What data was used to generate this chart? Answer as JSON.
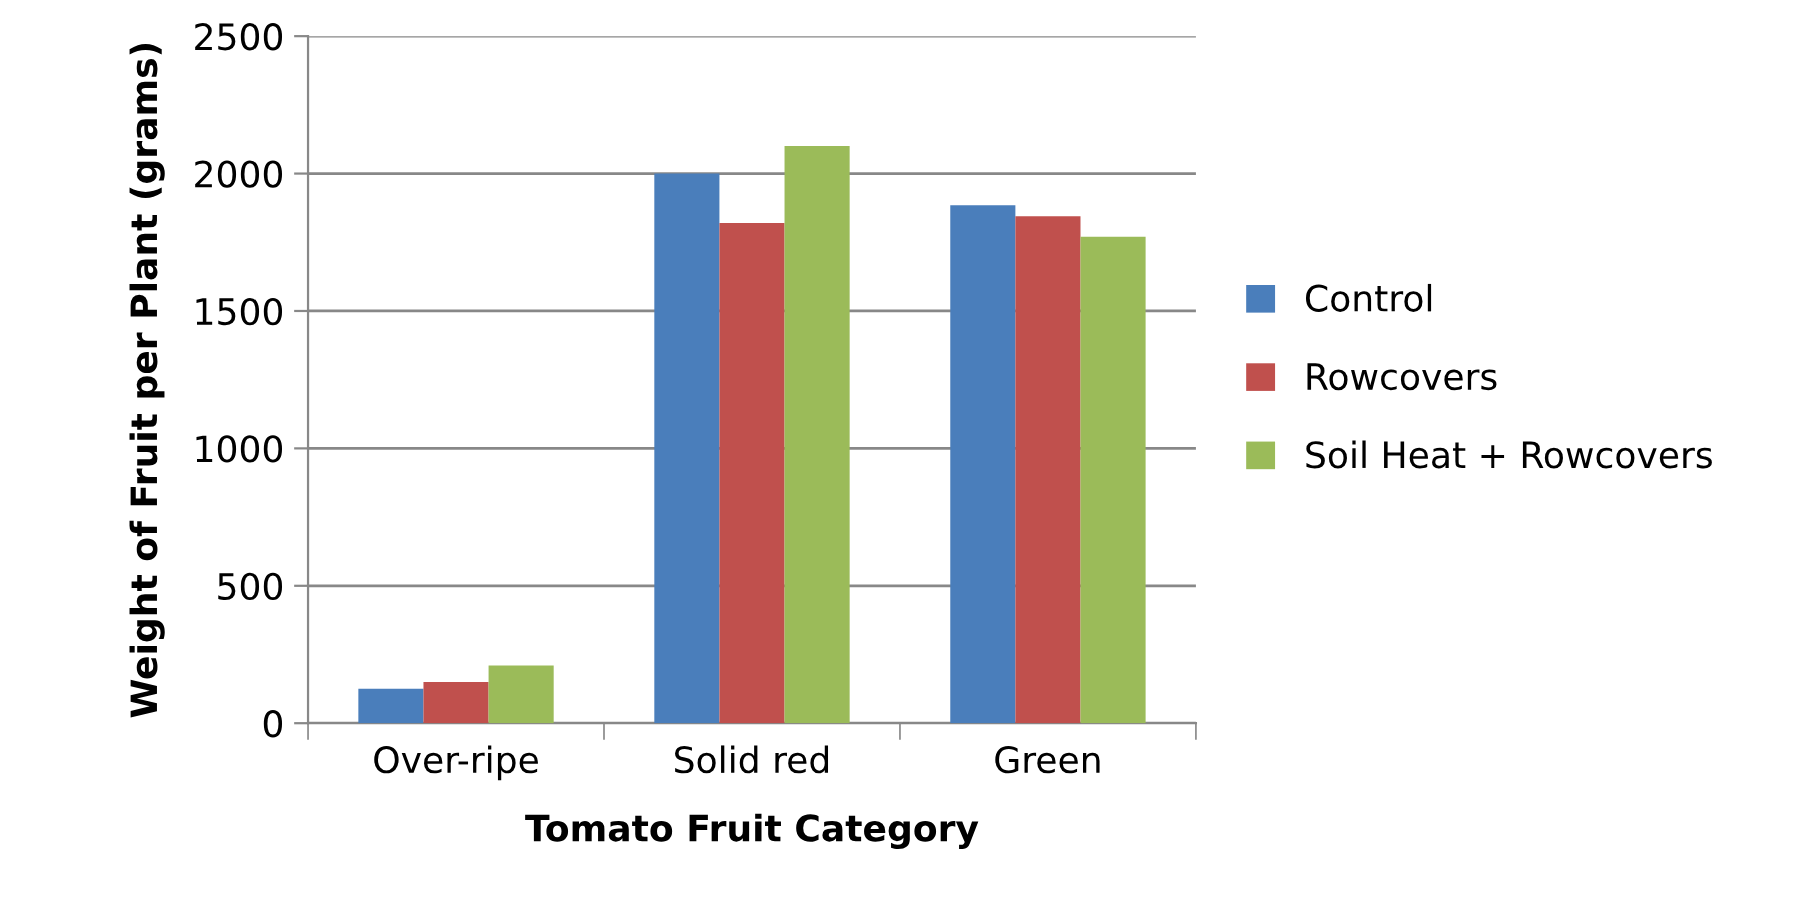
{
  "chart_data": {
    "type": "bar",
    "xlabel": "Tomato Fruit Category",
    "ylabel": "Weight of Fruit per Plant (grams)",
    "categories": [
      "Over-ripe",
      "Solid red",
      "Green"
    ],
    "series": [
      {
        "name": "Control",
        "color": "#4a7ebb",
        "values": [
          125,
          2000,
          1885
        ]
      },
      {
        "name": "Rowcovers",
        "color": "#c0504d",
        "values": [
          150,
          1820,
          1845
        ]
      },
      {
        "name": "Soil Heat + Rowcovers",
        "color": "#9bbb59",
        "values": [
          210,
          2100,
          1770
        ]
      }
    ],
    "ylim": [
      0,
      2500
    ],
    "yticks": [
      0,
      500,
      1000,
      1500,
      2000,
      2500
    ],
    "grid": "y",
    "legend": "right"
  }
}
